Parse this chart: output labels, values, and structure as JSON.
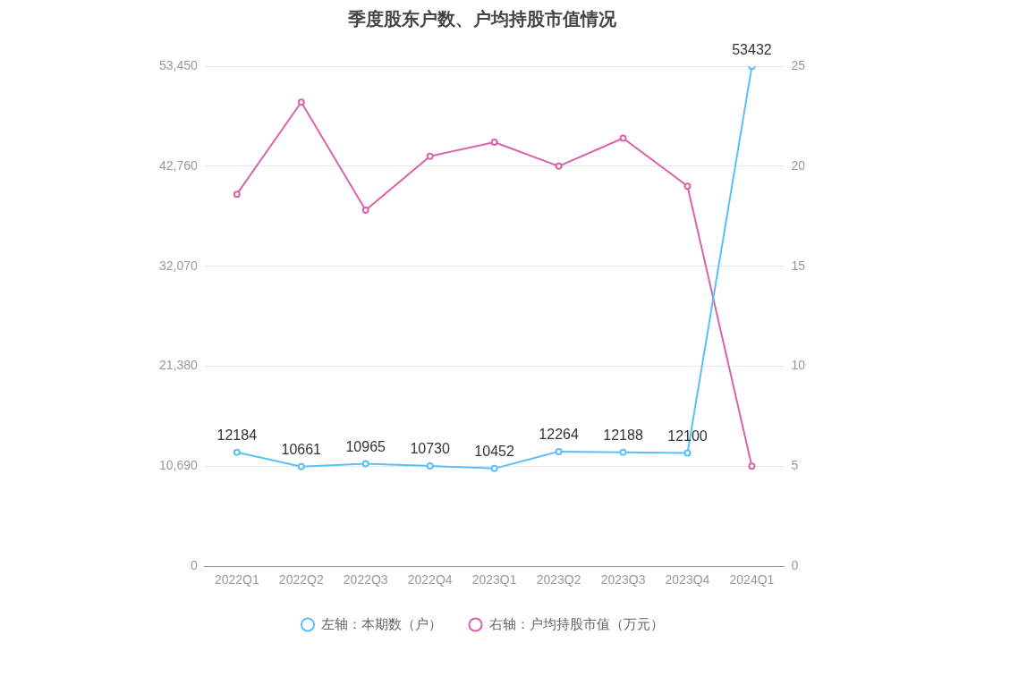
{
  "chart_data": {
    "type": "line",
    "title": "季度股东户数、户均持股市值情况",
    "categories": [
      "2022Q1",
      "2022Q2",
      "2022Q3",
      "2022Q4",
      "2023Q1",
      "2023Q2",
      "2023Q3",
      "2023Q4",
      "2024Q1"
    ],
    "series": [
      {
        "name": "左轴：本期数（户）",
        "color": "#5bc0f8",
        "values": [
          12184,
          10661,
          10965,
          10730,
          10452,
          12264,
          12188,
          12100,
          53432
        ],
        "value_labels": [
          "12184",
          "10661",
          "10965",
          "10730",
          "10452",
          "12264",
          "12188",
          "12100",
          "53432"
        ]
      },
      {
        "name": "右轴：户均持股市值（万元）",
        "color": "#d963ac",
        "axis": "y2",
        "values": [
          18.6,
          23.2,
          17.8,
          20.5,
          21.2,
          20.0,
          21.4,
          19.0,
          5.0
        ]
      }
    ],
    "ylim": [
      0,
      53450
    ],
    "yticks": [
      0,
      {
        "value": 10690,
        "label": "10,690"
      },
      {
        "value": 21380,
        "label": "21,380"
      },
      {
        "value": 32070,
        "label": "32,070"
      },
      {
        "value": 42760,
        "label": "42,760"
      },
      {
        "value": 53450,
        "label": "53,450"
      }
    ],
    "y2lim": [
      0,
      25
    ],
    "y2ticks": [
      0,
      5,
      10,
      15,
      20,
      25
    ],
    "grid": "y",
    "legend": "bottom",
    "marker": "circle"
  }
}
